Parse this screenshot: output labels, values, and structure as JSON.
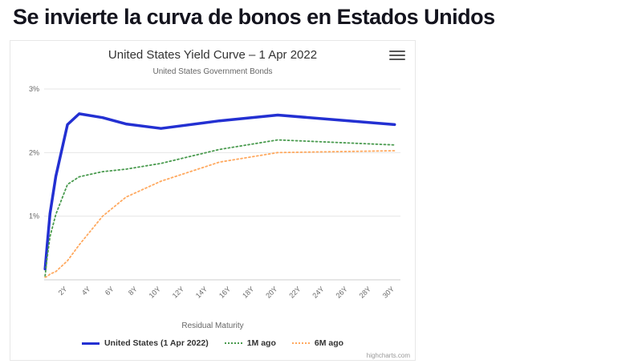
{
  "headline": "Se invierte la curva de bonos en Estados Unidos",
  "chart": {
    "title": "United States Yield Curve – 1 Apr 2022",
    "subtitle": "United States Government Bonds",
    "xlabel": "Residual Maturity",
    "credit": "highcharts.com",
    "menu_icon": "hamburger-icon"
  },
  "legend": {
    "items": [
      {
        "label": "United States (1 Apr 2022)",
        "color": "#2330d2",
        "style": "solid"
      },
      {
        "label": "1M ago",
        "color": "#4a9b4f",
        "style": "dotted"
      },
      {
        "label": "6M ago",
        "color": "#ffa95f",
        "style": "dotted"
      }
    ]
  },
  "chart_data": {
    "type": "line",
    "title": "United States Yield Curve – 1 Apr 2022",
    "subtitle": "United States Government Bonds",
    "xlabel": "Residual Maturity",
    "x_unit": "years",
    "x": [
      0.083,
      0.25,
      0.5,
      1,
      2,
      3,
      5,
      7,
      10,
      15,
      20,
      30
    ],
    "series": [
      {
        "name": "United States (1 Apr 2022)",
        "color": "#2330d2",
        "dash": "solid",
        "values": [
          0.17,
          0.52,
          1.04,
          1.63,
          2.44,
          2.61,
          2.55,
          2.45,
          2.38,
          2.5,
          2.59,
          2.44
        ]
      },
      {
        "name": "1M ago",
        "color": "#4a9b4f",
        "dash": "dotted",
        "values": [
          0.06,
          0.33,
          0.68,
          1.03,
          1.5,
          1.62,
          1.7,
          1.74,
          1.83,
          2.05,
          2.2,
          2.12
        ]
      },
      {
        "name": "6M ago",
        "color": "#ffa95f",
        "dash": "dotted",
        "values": [
          0.04,
          0.05,
          0.09,
          0.13,
          0.3,
          0.55,
          1.0,
          1.3,
          1.55,
          1.85,
          2.0,
          2.03
        ]
      }
    ],
    "xlim": [
      0,
      30.5
    ],
    "ylim": [
      0,
      3
    ],
    "y_ticks": [
      "1%",
      "2%",
      "3%"
    ],
    "x_ticks": [
      "2Y",
      "4Y",
      "6Y",
      "8Y",
      "10Y",
      "12Y",
      "14Y",
      "16Y",
      "18Y",
      "20Y",
      "22Y",
      "24Y",
      "26Y",
      "28Y",
      "30Y"
    ],
    "grid": "horizontal",
    "legend_position": "bottom"
  }
}
